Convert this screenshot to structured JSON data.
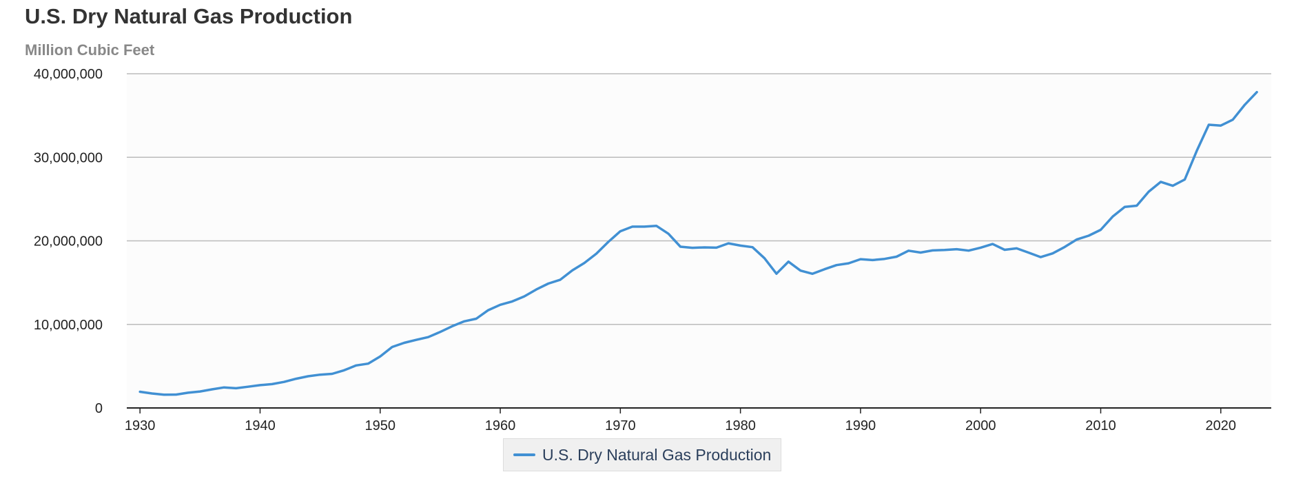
{
  "title": "U.S. Dry Natural Gas Production",
  "subtitle": "Million Cubic Feet",
  "legend": {
    "label": "U.S. Dry Natural Gas Production"
  },
  "colors": {
    "series": "#4190d3",
    "grid": "#bbbbbb",
    "axis": "#222222",
    "plot_bg": "#fcfcfc"
  },
  "chart_data": {
    "type": "line",
    "title": "U.S. Dry Natural Gas Production",
    "subtitle": "Million Cubic Feet",
    "xlabel": "",
    "ylabel": "",
    "xlim": [
      1930,
      2023
    ],
    "ylim": [
      0,
      40000000
    ],
    "x_ticks": [
      1930,
      1940,
      1950,
      1960,
      1970,
      1980,
      1990,
      2000,
      2010,
      2020
    ],
    "y_ticks": [
      0,
      10000000,
      20000000,
      30000000,
      40000000
    ],
    "y_tick_labels": [
      "0",
      "10,000,000",
      "20,000,000",
      "30,000,000",
      "40,000,000"
    ],
    "grid": true,
    "legend_position": "bottom-center",
    "series": [
      {
        "name": "U.S. Dry Natural Gas Production",
        "x": [
          1930,
          1931,
          1932,
          1933,
          1934,
          1935,
          1936,
          1937,
          1938,
          1939,
          1940,
          1941,
          1942,
          1943,
          1944,
          1945,
          1946,
          1947,
          1948,
          1949,
          1950,
          1951,
          1952,
          1953,
          1954,
          1955,
          1956,
          1957,
          1958,
          1959,
          1960,
          1961,
          1962,
          1963,
          1964,
          1965,
          1966,
          1967,
          1968,
          1969,
          1970,
          1971,
          1972,
          1973,
          1974,
          1975,
          1976,
          1977,
          1978,
          1979,
          1980,
          1981,
          1982,
          1983,
          1984,
          1985,
          1986,
          1987,
          1988,
          1989,
          1990,
          1991,
          1992,
          1993,
          1994,
          1995,
          1996,
          1997,
          1998,
          1999,
          2000,
          2001,
          2002,
          2003,
          2004,
          2005,
          2006,
          2007,
          2008,
          2009,
          2010,
          2011,
          2012,
          2013,
          2014,
          2015,
          2016,
          2017,
          2018,
          2019,
          2020,
          2021,
          2022,
          2023
        ],
        "values": [
          1940000,
          1730000,
          1590000,
          1600000,
          1820000,
          1970000,
          2230000,
          2460000,
          2360000,
          2540000,
          2730000,
          2850000,
          3120000,
          3500000,
          3790000,
          3980000,
          4080000,
          4510000,
          5090000,
          5300000,
          6170000,
          7300000,
          7790000,
          8150000,
          8480000,
          9100000,
          9780000,
          10370000,
          10680000,
          11700000,
          12350000,
          12750000,
          13350000,
          14180000,
          14890000,
          15350000,
          16460000,
          17350000,
          18470000,
          19880000,
          21150000,
          21700000,
          21700000,
          21800000,
          20850000,
          19300000,
          19170000,
          19220000,
          19180000,
          19700000,
          19430000,
          19240000,
          17920000,
          16070000,
          17510000,
          16440000,
          16060000,
          16600000,
          17100000,
          17310000,
          17810000,
          17700000,
          17840000,
          18100000,
          18820000,
          18600000,
          18850000,
          18900000,
          19000000,
          18830000,
          19180000,
          19620000,
          18930000,
          19100000,
          18590000,
          18050000,
          18500000,
          19270000,
          20160000,
          20620000,
          21320000,
          22900000,
          24060000,
          24210000,
          25890000,
          27060000,
          26590000,
          27340000,
          30770000,
          33900000,
          33800000,
          34500000,
          36300000,
          37800000
        ]
      }
    ]
  }
}
